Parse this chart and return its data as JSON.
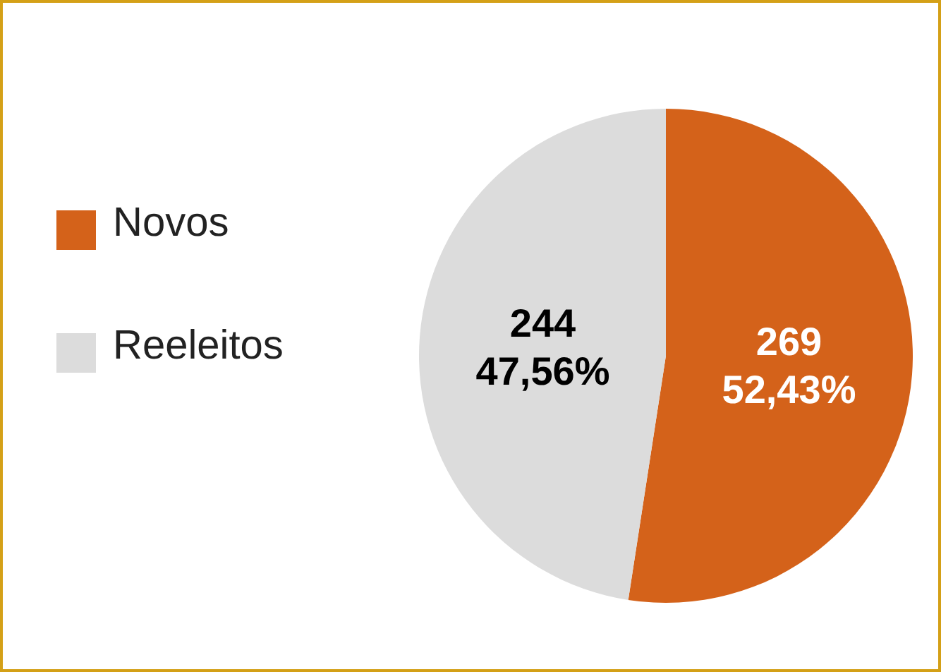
{
  "chart_data": {
    "type": "pie",
    "categories": [
      "Novos",
      "Reeleitos"
    ],
    "values": [
      269,
      244
    ],
    "colors": [
      "#d4621a",
      "#dcdcdc"
    ],
    "value_labels": [
      "269\n52,43%",
      "244\n47,56%"
    ],
    "legend": "left"
  }
}
